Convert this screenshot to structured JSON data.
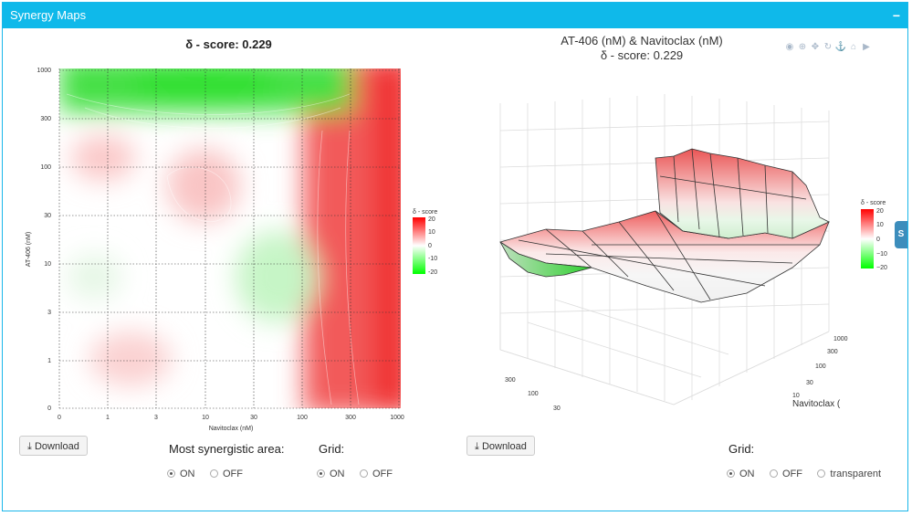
{
  "panel": {
    "title": "Synergy Maps",
    "collapse_symbol": "−"
  },
  "left_plot": {
    "title": "δ - score:  0.229",
    "xlabel": "Navitoclax (nM)",
    "ylabel": "AT-406 (nM)",
    "x_ticks": [
      "0",
      "1",
      "3",
      "10",
      "30",
      "100",
      "300",
      "1000"
    ],
    "y_ticks": [
      "0",
      "1",
      "3",
      "10",
      "30",
      "100",
      "300",
      "1000"
    ],
    "legend_title": "δ - score",
    "legend_ticks": [
      "20",
      "10",
      "0",
      "-10",
      "-20"
    ]
  },
  "right_plot": {
    "title_line1": "AT-406 (nM) & Navitoclax (nM)",
    "title_line2": "δ - score: 0.229",
    "legend_title": "δ - score",
    "legend_ticks": [
      "20",
      "10",
      "0",
      "−10",
      "−20"
    ],
    "axis_label": "Navitoclax (",
    "front_ticks": [
      "300",
      "100",
      "30"
    ],
    "right_ticks": [
      "1000",
      "300",
      "100",
      "30",
      "10"
    ]
  },
  "toolbar": {
    "icons": [
      "camera-icon",
      "zoom-icon",
      "pan-icon",
      "rotate-icon",
      "orbit-icon",
      "home-icon",
      "video-camera-icon"
    ],
    "glyphs": [
      "◉",
      "⊕",
      "✥",
      "↻",
      "⚓",
      "⌂",
      "▶"
    ]
  },
  "controls": {
    "download_label": "Download",
    "synergistic_label": "Most synergistic area:",
    "grid_label": "Grid:",
    "on": "ON",
    "off": "OFF",
    "transparent": "transparent"
  },
  "side_tab": {
    "label": "S"
  }
}
